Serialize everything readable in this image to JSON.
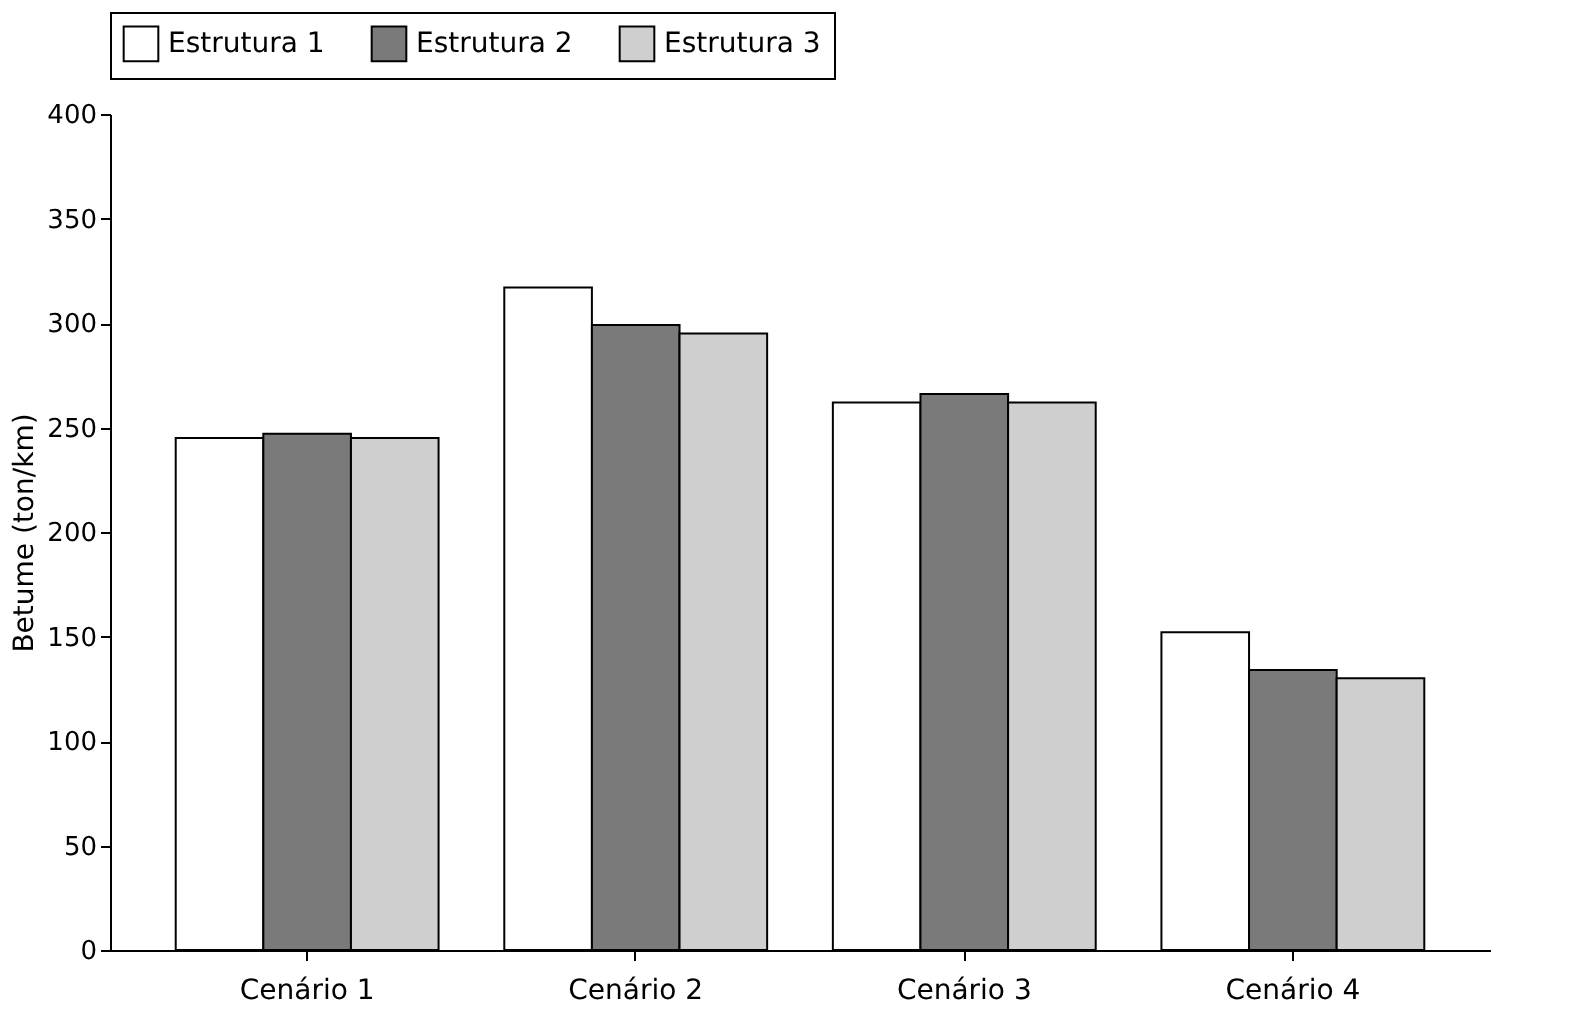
{
  "chart_data": {
    "type": "bar",
    "ylabel": "Betume (ton/km)",
    "categories": [
      "Cenário 1",
      "Cenário 2",
      "Cenário 3",
      "Cenário 4"
    ],
    "series": [
      {
        "name": "Estrutura 1",
        "color": "#ffffff",
        "values": [
          245,
          317,
          262,
          152
        ]
      },
      {
        "name": "Estrutura 2",
        "color": "#7a7a7a",
        "values": [
          247,
          299,
          266,
          134
        ]
      },
      {
        "name": "Estrutura 3",
        "color": "#cfcfcf",
        "values": [
          245,
          295,
          262,
          130
        ]
      }
    ],
    "ylim": [
      0,
      400
    ],
    "yticks": [
      0,
      50,
      100,
      150,
      200,
      250,
      300,
      350,
      400
    ],
    "grid": false,
    "legend": "top"
  }
}
